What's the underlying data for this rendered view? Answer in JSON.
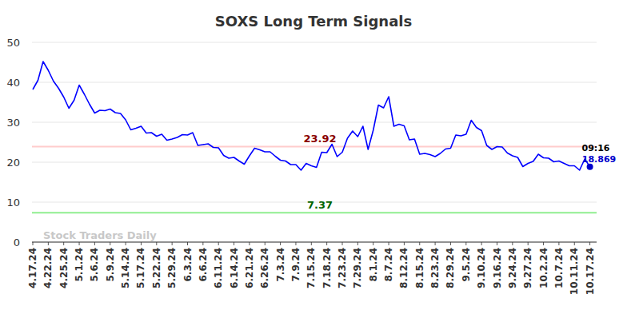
{
  "chart_data": {
    "type": "line",
    "title": "SOXS Long Term Signals",
    "categories": [
      "4.17.24",
      null,
      null,
      "4.22.24",
      null,
      null,
      "4.25.24",
      null,
      null,
      "5.1.24",
      null,
      null,
      "5.6.24",
      null,
      null,
      "5.9.24",
      null,
      null,
      "5.14.24",
      null,
      null,
      "5.17.24",
      null,
      null,
      "5.22.24",
      null,
      null,
      "5.29.24",
      null,
      null,
      "6.3.24",
      null,
      null,
      "6.6.24",
      null,
      null,
      "6.11.24",
      null,
      null,
      "6.14.24",
      null,
      null,
      "6.21.24",
      null,
      null,
      "6.26.24",
      null,
      null,
      "7.3.24",
      null,
      null,
      "7.9.24",
      null,
      null,
      "7.15.24",
      null,
      null,
      "7.18.24",
      null,
      null,
      "7.23.24",
      null,
      null,
      "7.29.24",
      null,
      null,
      "8.1.24",
      null,
      null,
      "8.7.24",
      null,
      null,
      "8.12.24",
      null,
      null,
      "8.15.24",
      null,
      null,
      "8.23.24",
      null,
      null,
      "8.29.24",
      null,
      null,
      "9.5.24",
      null,
      null,
      "9.10.24",
      null,
      null,
      "9.16.24",
      null,
      null,
      "9.24.24",
      null,
      null,
      "9.27.24",
      null,
      null,
      "10.2.24",
      null,
      null,
      "10.7.24",
      null,
      null,
      "10.11.24",
      null,
      null,
      "10.17.24"
    ],
    "series": [
      {
        "color": "#0000ff",
        "values": [
          38.2,
          40.5,
          45.2,
          43,
          40.3,
          38.5,
          36.3,
          33.5,
          35.5,
          39.3,
          37,
          34.5,
          32.3,
          33,
          32.9,
          33.3,
          32.4,
          32.2,
          30.6,
          28.1,
          28.5,
          29,
          27.3,
          27.4,
          26.5,
          27,
          25.5,
          25.8,
          26.2,
          26.9,
          26.8,
          27.4,
          24.2,
          24.4,
          24.6,
          23.7,
          23.6,
          21.7,
          21,
          21.2,
          20.3,
          19.5,
          21.6,
          23.5,
          23.1,
          22.6,
          22.6,
          21.5,
          20.5,
          20.3,
          19.4,
          19.4,
          18,
          19.7,
          19.1,
          18.7,
          22.5,
          22.4,
          24.5,
          21.4,
          22.5,
          26,
          27.8,
          26.4,
          29,
          23.2,
          28,
          34.3,
          33.6,
          36.4,
          29,
          29.5,
          29.1,
          25.6,
          25.8,
          22,
          22.2,
          21.9,
          21.4,
          22.2,
          23.3,
          23.5,
          26.8,
          26.6,
          27,
          30.5,
          28.7,
          27.9,
          24.2,
          23.2,
          23.9,
          23.8,
          22.3,
          21.6,
          21.2,
          18.9,
          19.7,
          20.2,
          22,
          21.1,
          21,
          20.1,
          20.3,
          19.7,
          19.1,
          19.1,
          18,
          20.8,
          18.869
        ]
      }
    ],
    "ylim": [
      0,
      50
    ],
    "yticks": [
      0,
      10,
      20,
      30,
      40,
      50
    ],
    "grid": true,
    "annotations": [
      {
        "value": 23.92,
        "label": "23.92",
        "color": "#ffcccc",
        "text_color": "#8b0000"
      },
      {
        "value": 7.37,
        "label": "7.37",
        "color": "#90ee90",
        "text_color": "#006400"
      }
    ],
    "last_point": {
      "time": "09:16",
      "label": "18.869",
      "color": "#0000cc"
    },
    "watermark": "Stock Traders Daily"
  }
}
